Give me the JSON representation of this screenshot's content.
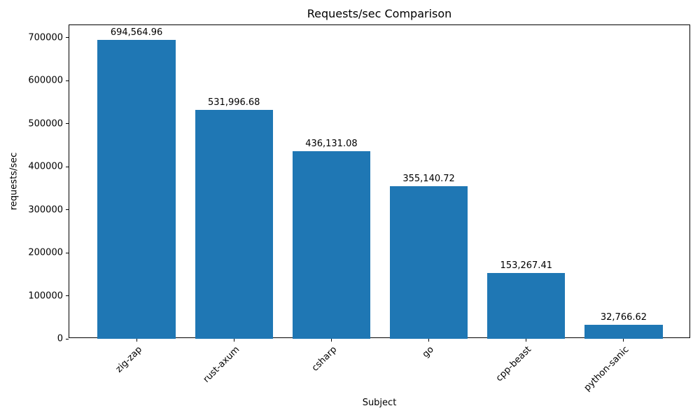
{
  "chart_data": {
    "type": "bar",
    "title": "Requests/sec Comparison",
    "xlabel": "Subject",
    "ylabel": "requests/sec",
    "categories": [
      "zig-zap",
      "rust-axum",
      "csharp",
      "go",
      "cpp-beast",
      "python-sanic"
    ],
    "values": [
      694564.96,
      531996.68,
      436131.08,
      355140.72,
      153267.41,
      32766.62
    ],
    "value_labels": [
      "694,564.96",
      "531,996.68",
      "436,131.08",
      "355,140.72",
      "153,267.41",
      "32,766.62"
    ],
    "bar_color": "#1f77b4",
    "axis_color": "#000000",
    "ylim": [
      0,
      729293
    ],
    "yticks": [
      0,
      100000,
      200000,
      300000,
      400000,
      500000,
      600000,
      700000
    ],
    "ytick_labels": [
      "0",
      "100000",
      "200000",
      "300000",
      "400000",
      "500000",
      "600000",
      "700000"
    ],
    "xlim": [
      -0.69,
      5.69
    ],
    "bar_width": 0.8,
    "grid": false,
    "legend": null,
    "xtick_rotation": 45
  }
}
